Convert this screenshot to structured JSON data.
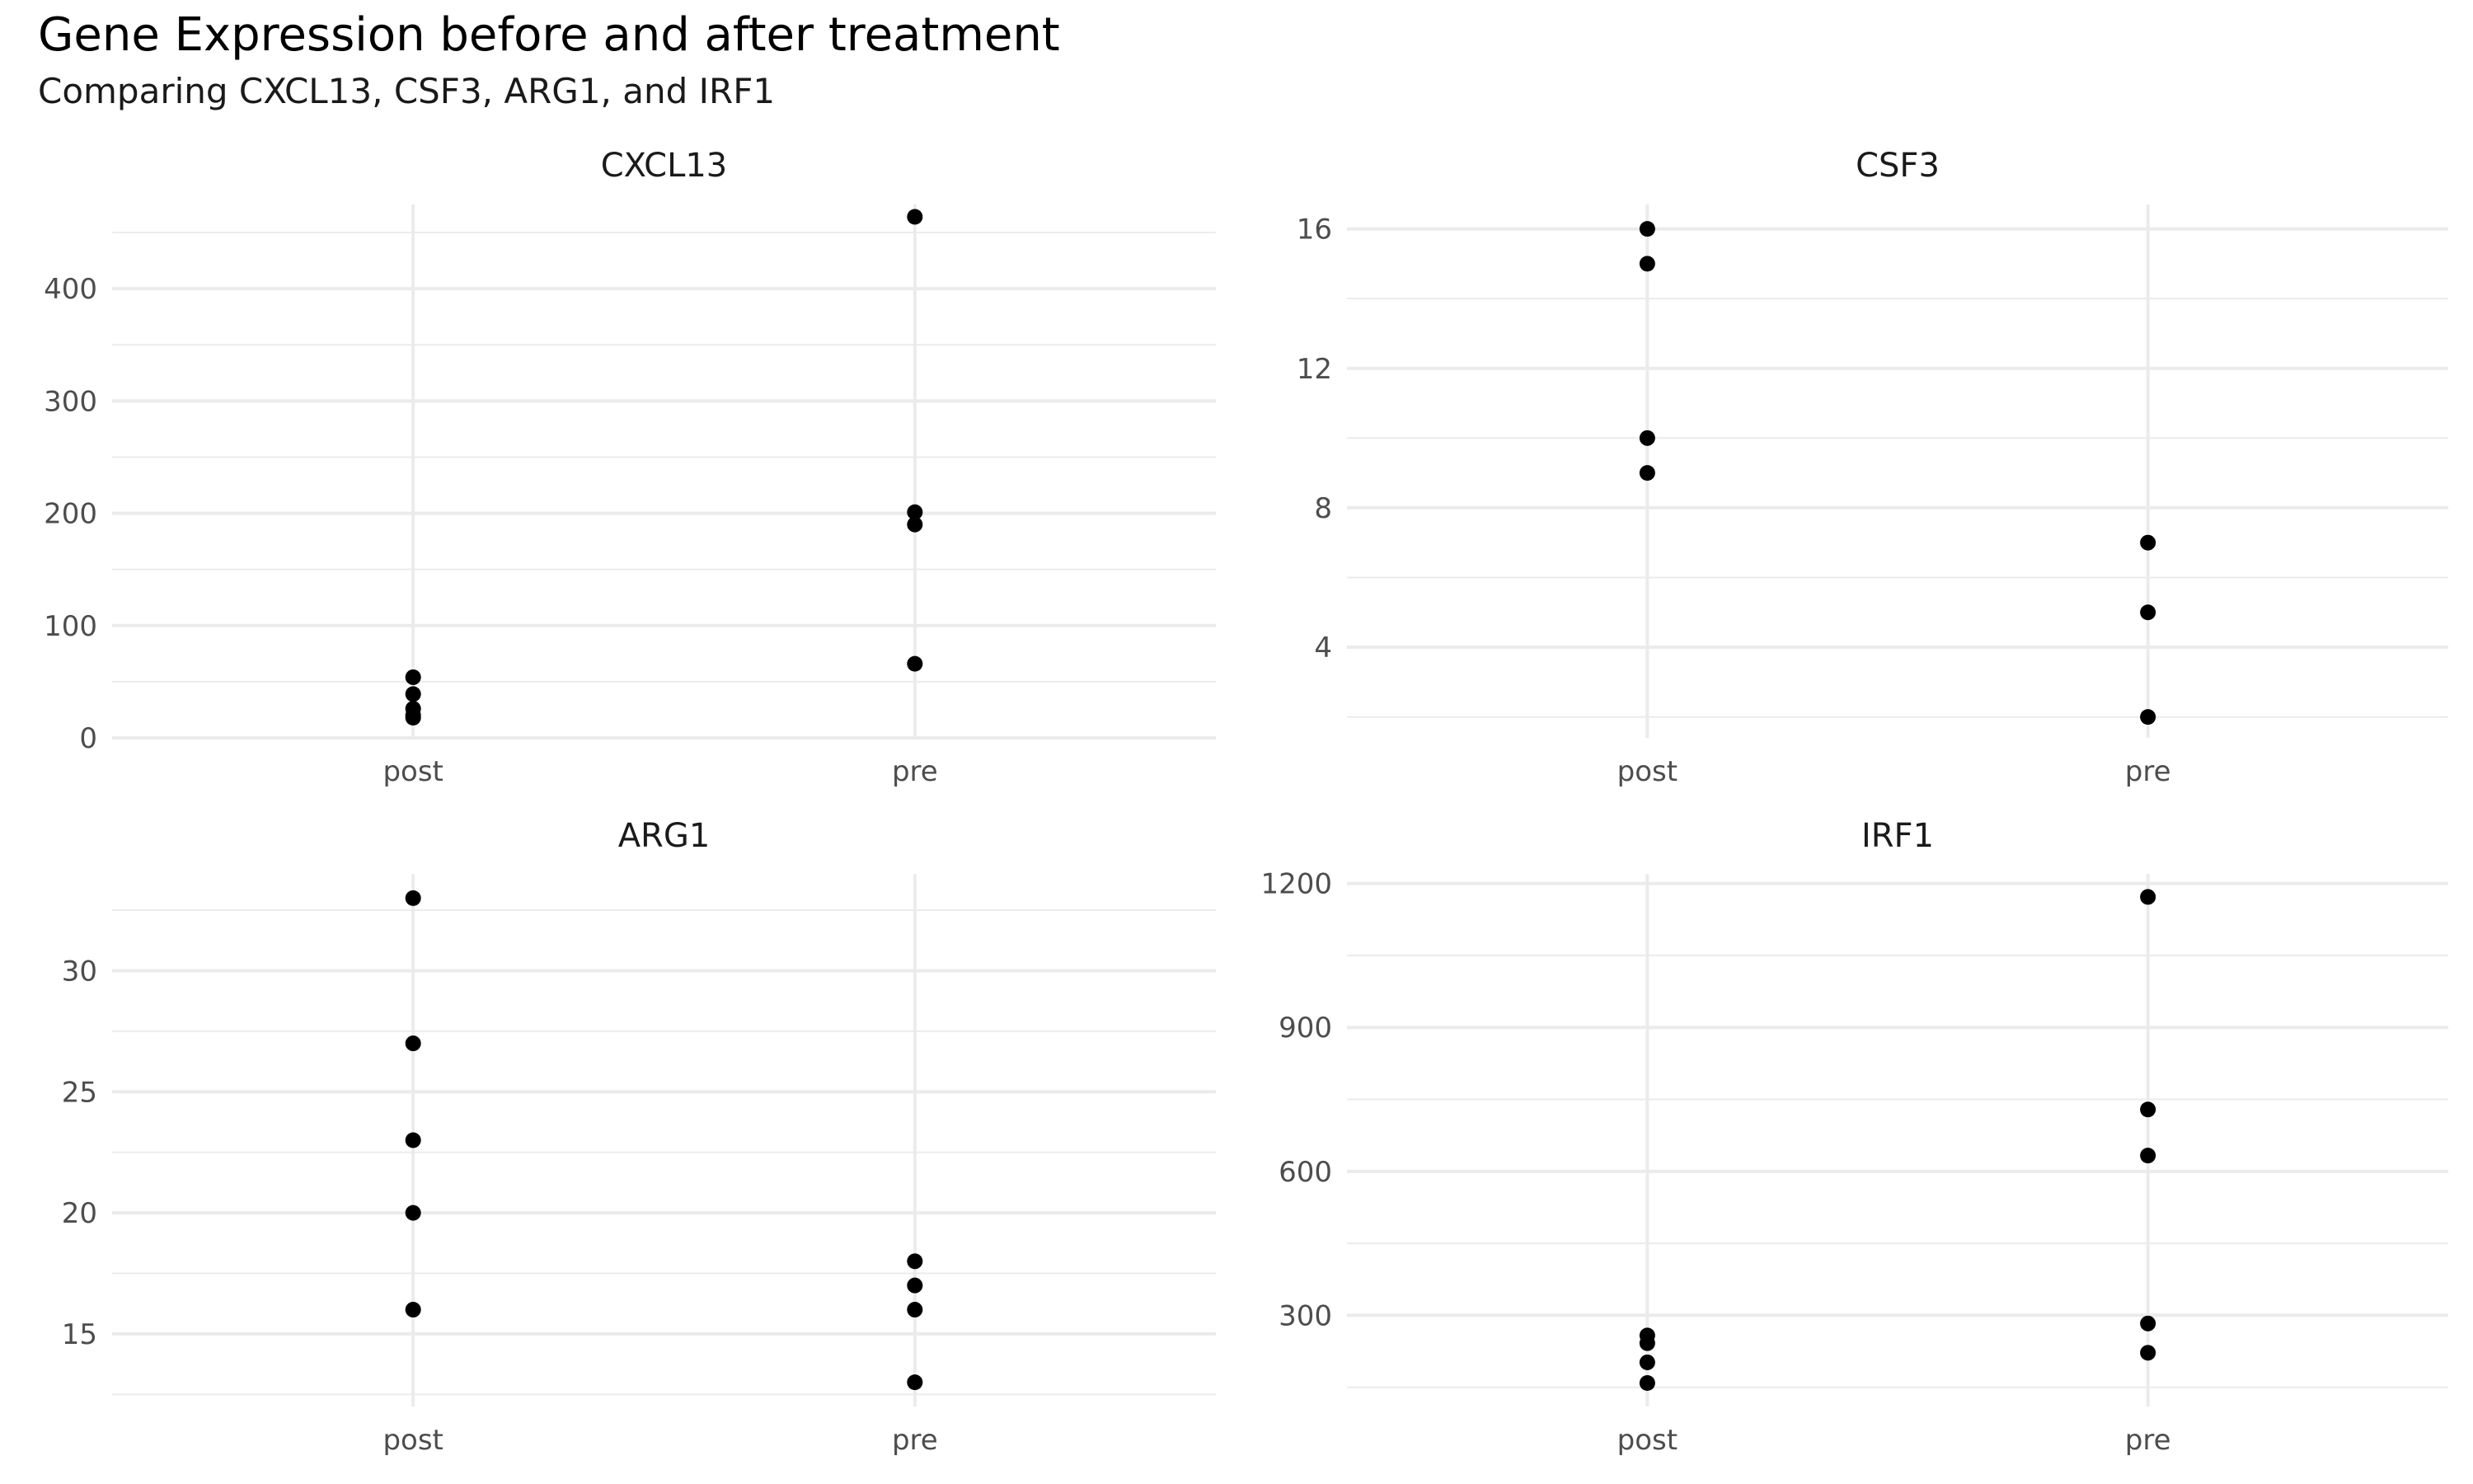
{
  "chart_data": {
    "title": "Gene Expression before and after treatment",
    "subtitle": "Comparing CXCL13, CSF3, ARG1, and IRF1",
    "type": "scatter",
    "layout": "facet-grid-2x2",
    "grid": true,
    "categories": [
      "post",
      "pre"
    ],
    "panels": [
      {
        "name": "CXCL13",
        "ylim": [
          0,
          475
        ],
        "yticks": [
          0,
          100,
          200,
          300,
          400
        ],
        "points": [
          {
            "x": "post",
            "y": 54
          },
          {
            "x": "post",
            "y": 39
          },
          {
            "x": "post",
            "y": 26
          },
          {
            "x": "post",
            "y": 20
          },
          {
            "x": "post",
            "y": 18
          },
          {
            "x": "pre",
            "y": 464
          },
          {
            "x": "pre",
            "y": 201
          },
          {
            "x": "pre",
            "y": 190
          },
          {
            "x": "pre",
            "y": 66
          }
        ]
      },
      {
        "name": "CSF3",
        "ylim": [
          1.4,
          16.7
        ],
        "yticks": [
          4,
          8,
          12,
          16
        ],
        "points": [
          {
            "x": "post",
            "y": 16
          },
          {
            "x": "post",
            "y": 15
          },
          {
            "x": "post",
            "y": 10
          },
          {
            "x": "post",
            "y": 9
          },
          {
            "x": "pre",
            "y": 7
          },
          {
            "x": "pre",
            "y": 5
          },
          {
            "x": "pre",
            "y": 2
          }
        ]
      },
      {
        "name": "ARG1",
        "ylim": [
          12.0,
          34.0
        ],
        "yticks": [
          15,
          20,
          25,
          30
        ],
        "points": [
          {
            "x": "post",
            "y": 33
          },
          {
            "x": "post",
            "y": 27
          },
          {
            "x": "post",
            "y": 23
          },
          {
            "x": "post",
            "y": 20
          },
          {
            "x": "post",
            "y": 16
          },
          {
            "x": "pre",
            "y": 18
          },
          {
            "x": "pre",
            "y": 17
          },
          {
            "x": "pre",
            "y": 16
          },
          {
            "x": "pre",
            "y": 13
          }
        ]
      },
      {
        "name": "IRF1",
        "ylim": [
          110,
          1220
        ],
        "yticks": [
          300,
          600,
          900,
          1200
        ],
        "points": [
          {
            "x": "post",
            "y": 258
          },
          {
            "x": "post",
            "y": 242
          },
          {
            "x": "post",
            "y": 202
          },
          {
            "x": "post",
            "y": 159
          },
          {
            "x": "pre",
            "y": 1172
          },
          {
            "x": "pre",
            "y": 729
          },
          {
            "x": "pre",
            "y": 633
          },
          {
            "x": "pre",
            "y": 283
          },
          {
            "x": "pre",
            "y": 222
          }
        ]
      }
    ]
  }
}
